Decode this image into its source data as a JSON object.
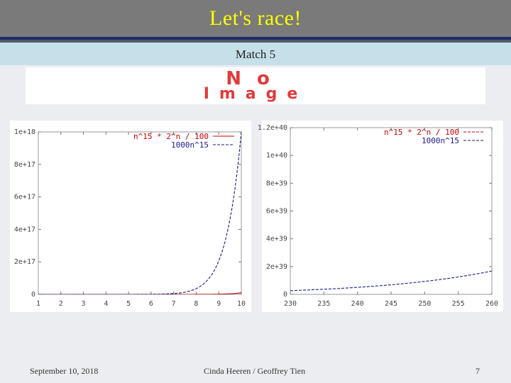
{
  "slide": {
    "title": "Let's race!",
    "subtitle": "Match 5",
    "placeholder_image_text": [
      "No",
      "Image"
    ],
    "footer": {
      "date": "September 10, 2018",
      "authors": "Cinda Heeren / Geoffrey Tien",
      "page": "7"
    },
    "colors": {
      "title_bar": "#7a7a7a",
      "title_text": "#ffff00",
      "subtitle_bar": "#c6e0ea",
      "background": "#ecedf0",
      "placeholder_text": "#e23a3a"
    }
  },
  "chart_data": [
    {
      "type": "line",
      "xlim": [
        1,
        10
      ],
      "ylim": [
        0,
        1e+18
      ],
      "x_ticks": [
        "1",
        "2",
        "3",
        "4",
        "5",
        "6",
        "7",
        "8",
        "9",
        "10"
      ],
      "y_ticks": [
        "0",
        "2e+17",
        "4e+17",
        "6e+17",
        "8e+17",
        "1e+18"
      ],
      "legend_position": "top-right",
      "grid": false,
      "series": [
        {
          "name": "n^15 * 2^n / 100",
          "color": "#cc0000",
          "style": "solid",
          "formula": "n^15 * 2^n / 100"
        },
        {
          "name": "1000n^15",
          "color": "#1a1a8c",
          "style": "dashed",
          "formula": "1000n^15"
        }
      ]
    },
    {
      "type": "line",
      "xlim": [
        230,
        260
      ],
      "ylim": [
        0,
        1.2e+40
      ],
      "x_ticks": [
        "230",
        "235",
        "240",
        "245",
        "250",
        "255",
        "260"
      ],
      "y_ticks": [
        "0",
        "2e+39",
        "4e+39",
        "6e+39",
        "8e+39",
        "1e+40",
        "1.2e+40"
      ],
      "legend_position": "top-right",
      "grid": false,
      "series": [
        {
          "name": "n^15 * 2^n / 100",
          "color": "#cc0000",
          "style": "dashed",
          "formula": "n^15 * 2^n / 100"
        },
        {
          "name": "1000n^15",
          "color": "#1a1a8c",
          "style": "dashed",
          "formula": "1000n^15"
        }
      ]
    }
  ]
}
